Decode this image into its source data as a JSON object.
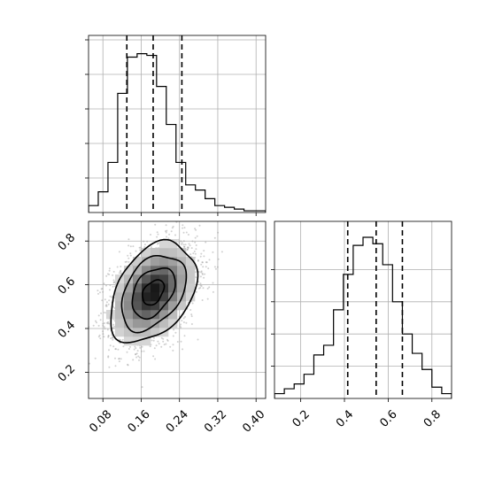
{
  "chart_data": [
    {
      "panel": "marginal-x",
      "type": "step-histogram",
      "xlim": [
        0.05,
        0.42
      ],
      "bin_edges": [
        0.05,
        0.0703,
        0.0906,
        0.1109,
        0.1312,
        0.1515,
        0.1718,
        0.1921,
        0.2124,
        0.2327,
        0.253,
        0.2733,
        0.2936,
        0.3139,
        0.3342,
        0.3545,
        0.3748,
        0.3951,
        0.42
      ],
      "counts": [
        0.04,
        0.12,
        0.29,
        0.69,
        0.9,
        0.92,
        0.91,
        0.73,
        0.51,
        0.29,
        0.16,
        0.13,
        0.08,
        0.04,
        0.03,
        0.02,
        0.01,
        0.01
      ],
      "quantile_lines": [
        0.13,
        0.185,
        0.245
      ],
      "grid": true,
      "show_y_tick_labels": false
    },
    {
      "panel": "joint",
      "type": "density-contour",
      "xlim": [
        0.05,
        0.42
      ],
      "ylim": [
        0.08,
        0.89
      ],
      "xticks": [
        "0.08",
        "0.16",
        "0.24",
        "0.32",
        "0.40"
      ],
      "yticks": [
        "0.2",
        "0.4",
        "0.6",
        "0.8"
      ],
      "center": [
        0.185,
        0.565
      ],
      "spread": [
        0.045,
        0.115
      ],
      "correlation": 0.38,
      "contour_levels_sigma": [
        0.5,
        1.0,
        1.5,
        2.0
      ],
      "grid": true
    },
    {
      "panel": "marginal-y",
      "type": "step-histogram",
      "xlim": [
        0.08,
        0.89
      ],
      "xticks": [
        "0.2",
        "0.4",
        "0.6",
        "0.8"
      ],
      "bin_edges": [
        0.08,
        0.125,
        0.17,
        0.215,
        0.26,
        0.305,
        0.35,
        0.395,
        0.44,
        0.485,
        0.53,
        0.575,
        0.62,
        0.665,
        0.71,
        0.755,
        0.8,
        0.845,
        0.89
      ],
      "counts": [
        0.03,
        0.06,
        0.09,
        0.15,
        0.27,
        0.33,
        0.55,
        0.77,
        0.95,
        1.0,
        0.96,
        0.83,
        0.6,
        0.4,
        0.28,
        0.18,
        0.07,
        0.03
      ],
      "quantile_lines": [
        0.415,
        0.545,
        0.665
      ],
      "grid": true,
      "show_y_tick_labels": false
    }
  ]
}
